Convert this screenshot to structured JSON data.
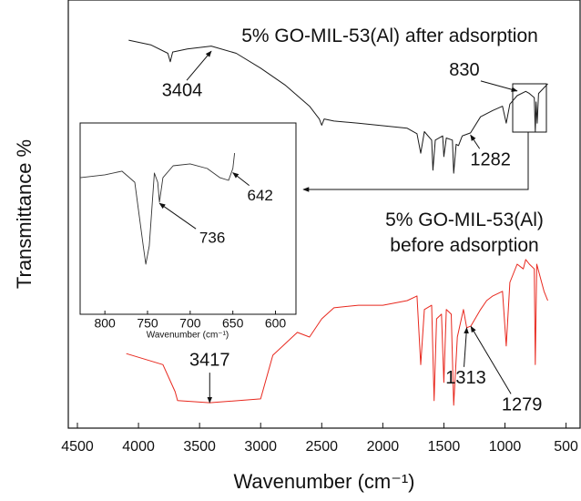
{
  "chart_data": [
    {
      "type": "line",
      "xlabel": "Wavenumber (cm⁻¹)",
      "ylabel": "Transmittance %",
      "xlim": [
        4500,
        400
      ],
      "xticks": [
        4500,
        4000,
        3500,
        3000,
        2500,
        2000,
        1500,
        1000,
        500
      ],
      "ylim": [
        0,
        100
      ],
      "series": [
        {
          "name": "5% GO-MIL-53(Al) after adsorption",
          "color": "#1a1a1a",
          "x": [
            4080,
            3900,
            3760,
            3740,
            3720,
            3600,
            3404,
            3200,
            3000,
            2800,
            2600,
            2520,
            2500,
            2480,
            2400,
            2200,
            2000,
            1800,
            1720,
            1690,
            1660,
            1600,
            1590,
            1570,
            1510,
            1500,
            1480,
            1430,
            1420,
            1400,
            1380,
            1350,
            1282,
            1200,
            1100,
            1020,
            990,
            960,
            900,
            830,
            800,
            760,
            752,
            745,
            736,
            725,
            650
          ],
          "values": [
            91.6,
            90.5,
            88.5,
            86.5,
            88.8,
            89.5,
            90.2,
            88.5,
            85,
            81,
            76,
            73,
            71.5,
            73,
            72.5,
            72,
            71.4,
            70.8,
            69.5,
            64.9,
            70,
            68,
            60.9,
            68,
            69,
            64.1,
            68.5,
            68,
            60.2,
            67,
            66.7,
            69,
            69.7,
            73.5,
            75,
            76,
            72,
            76.5,
            78.5,
            79.5,
            79,
            78,
            70,
            77,
            72,
            79,
            81.3
          ]
        },
        {
          "name": "5% GO-MIL-53(Al)\nbefore adsorption",
          "color": "#e8281e",
          "x": [
            4100,
            3800,
            3700,
            3680,
            3417,
            3000,
            2900,
            2700,
            2600,
            2500,
            2400,
            2200,
            2000,
            1800,
            1720,
            1690,
            1660,
            1600,
            1580,
            1560,
            1520,
            1500,
            1480,
            1440,
            1420,
            1390,
            1340,
            1313,
            1279,
            1200,
            1150,
            1100,
            1020,
            990,
            960,
            900,
            850,
            830,
            800,
            760,
            752,
            740,
            680,
            650
          ],
          "values": [
            17.6,
            15,
            8.6,
            6.5,
            6,
            6.9,
            17.2,
            22.6,
            21.5,
            25.8,
            28.4,
            29,
            29,
            30.1,
            31.2,
            15,
            28,
            29,
            6.5,
            25.8,
            26.9,
            10.8,
            28,
            26.9,
            5.4,
            21.5,
            28,
            23.7,
            24.1,
            28,
            30.1,
            31.2,
            32.3,
            19.4,
            34.4,
            38.7,
            37.6,
            39.8,
            38.7,
            37.6,
            15,
            38.7,
            32.3,
            30.1
          ]
        }
      ],
      "annotations": [
        {
          "text": "3404",
          "x": 3404,
          "y": 89
        },
        {
          "text": "830",
          "x": 900,
          "y": 79.6
        },
        {
          "text": "1282",
          "x": 1282,
          "y": 69.2
        },
        {
          "text": "3417",
          "x": 3417,
          "y": 6
        },
        {
          "text": "1313",
          "x": 1313,
          "y": 23.7
        },
        {
          "text": "1279",
          "x": 1279,
          "y": 24
        }
      ]
    },
    {
      "type": "line",
      "xlabel": "Wavenumber (cm⁻¹)",
      "xlim": [
        829,
        576
      ],
      "xticks": [
        800,
        750,
        700,
        650,
        600
      ],
      "ylim": [
        0,
        100
      ],
      "series": [
        {
          "color": "#333333",
          "x": [
            829,
            800,
            780,
            765,
            755,
            752,
            748,
            742,
            738,
            736,
            732,
            720,
            700,
            680,
            665,
            655,
            650,
            648
          ],
          "values": [
            71.4,
            72.9,
            74.8,
            69,
            35.7,
            26.2,
            35.7,
            73.8,
            69,
            58.6,
            71.4,
            77.6,
            78.6,
            76.2,
            71.4,
            70,
            76.2,
            84.3
          ]
        }
      ],
      "annotations": [
        {
          "text": "642",
          "x": 650,
          "y": 74
        },
        {
          "text": "736",
          "x": 736,
          "y": 58
        }
      ]
    }
  ]
}
